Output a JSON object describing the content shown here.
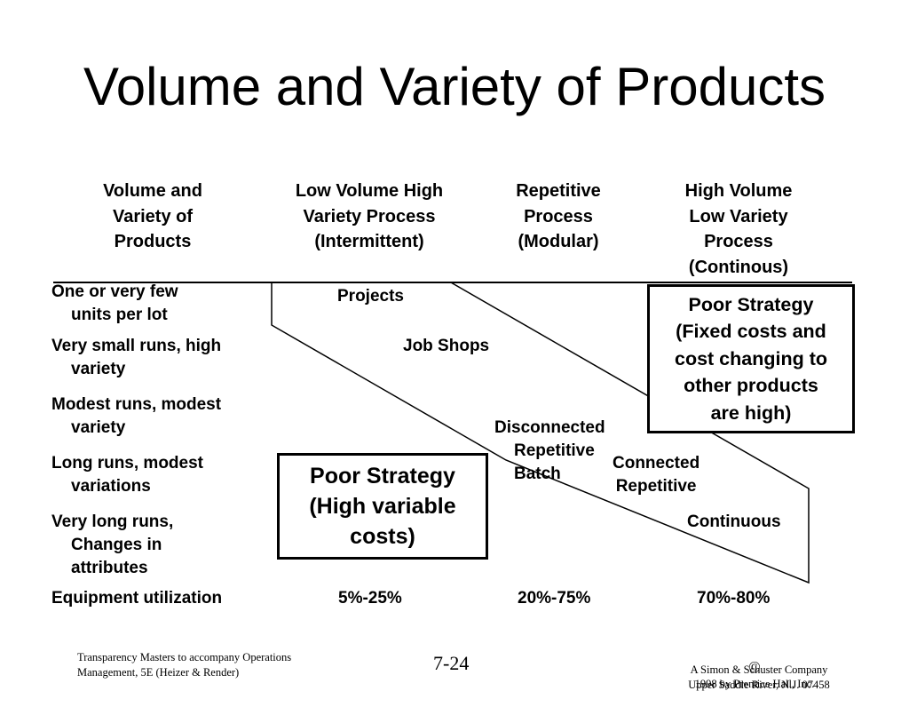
{
  "title": "Volume and Variety of Products",
  "headers": {
    "col0": "Volume and\nVariety of\nProducts",
    "col1": "Low Volume High\nVariety Process\n(Intermittent)",
    "col2": "Repetitive\nProcess\n(Modular)",
    "col3": "High Volume\nLow Variety\nProcess\n(Continous)"
  },
  "rows": [
    "One or very few\nunits per lot",
    "Very small runs, high\nvariety",
    "Modest runs, modest\nvariety",
    "Long runs, modest\nvariations",
    "Very long runs,\nChanges in\nattributes"
  ],
  "process_labels": {
    "projects": "Projects",
    "job_shops": "Job Shops",
    "disconnected": "Disconnected\nRepetitive\nBatch",
    "connected": "Connected\nRepetitive",
    "continuous": "Continuous"
  },
  "poor_strategy_fixed": "Poor Strategy\n(Fixed costs and\ncost changing to\nother products\nare high)",
  "poor_strategy_variable": "Poor Strategy\n(High variable\ncosts)",
  "equipment": {
    "label": "Equipment utilization",
    "values": [
      "5%-25%",
      "20%-75%",
      "70%-80%"
    ]
  },
  "footer": {
    "left": "Transparency Masters to accompany Operations\nManagement, 5E (Heizer & Render)",
    "page": "7-24",
    "copyright_symbol": "©",
    "copyright_text": "1998 by Prentice Hall, Inc.",
    "publisher": "A Simon & Schuster Company\nUpper Saddle River, N.J. 07458"
  }
}
